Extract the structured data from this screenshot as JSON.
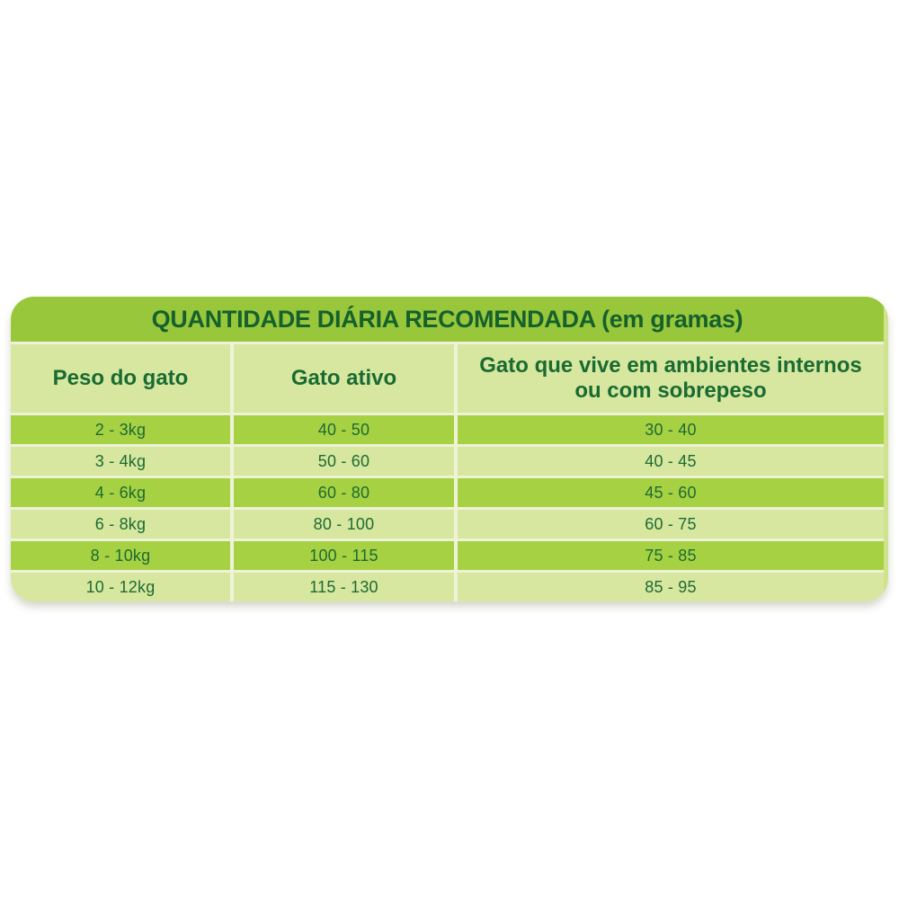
{
  "colors": {
    "title_band_bg": "#99c73c",
    "dark_row_bg": "#a6d142",
    "light_row_bg": "#d7e79f",
    "separator": "#eef3d7",
    "card_edge": "#cfe28c",
    "title_text": "#15612c",
    "cell_text": "#1d6b33"
  },
  "chart_data": {
    "type": "table",
    "title": "QUANTIDADE DIÁRIA RECOMENDADA (em gramas)",
    "columns": [
      "Peso do gato",
      "Gato ativo",
      "Gato que vive em ambientes internos ou com sobrepeso"
    ],
    "rows": [
      [
        "2 - 3kg",
        "40 - 50",
        "30 - 40"
      ],
      [
        "3 - 4kg",
        "50 - 60",
        "40 - 45"
      ],
      [
        "4 - 6kg",
        "60 - 80",
        "45 - 60"
      ],
      [
        "6 - 8kg",
        "80 - 100",
        "60 - 75"
      ],
      [
        "8 - 10kg",
        "100 - 115",
        "75 - 85"
      ],
      [
        "10 - 12kg",
        "115 - 130",
        "85 - 95"
      ]
    ],
    "layout": {
      "legend": "none",
      "grid": "off",
      "style": "alternating green banded table with rounded corners"
    }
  }
}
